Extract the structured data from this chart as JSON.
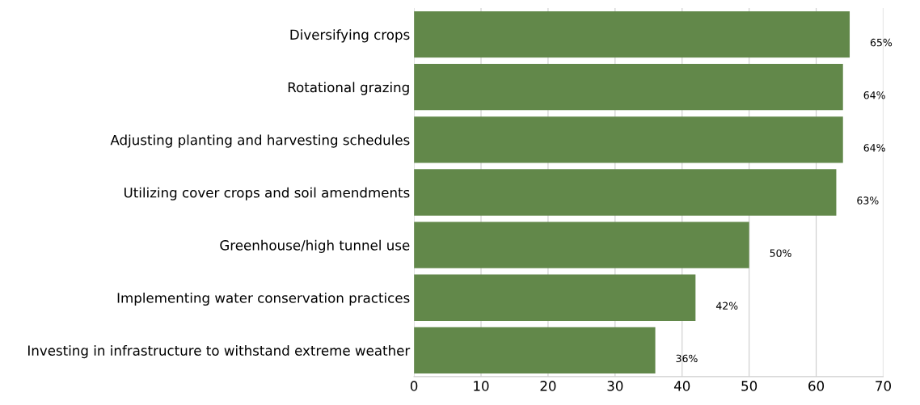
{
  "chart_data": {
    "type": "bar",
    "orientation": "horizontal",
    "categories": [
      "Diversifying crops",
      "Rotational grazing",
      "Adjusting planting and harvesting schedules",
      "Utilizing cover crops and soil amendments",
      "Greenhouse/high tunnel use",
      "Implementing water conservation practices",
      "Investing in infrastructure to withstand extreme weather"
    ],
    "values": [
      65,
      64,
      64,
      63,
      50,
      42,
      36
    ],
    "value_labels": [
      "65%",
      "64%",
      "64%",
      "63%",
      "50%",
      "42%",
      "36%"
    ],
    "color": "#62884a",
    "xlim": [
      0,
      70
    ],
    "xticks": [
      0,
      10,
      20,
      30,
      40,
      50,
      60,
      70
    ],
    "grid": "x",
    "legend": false
  }
}
